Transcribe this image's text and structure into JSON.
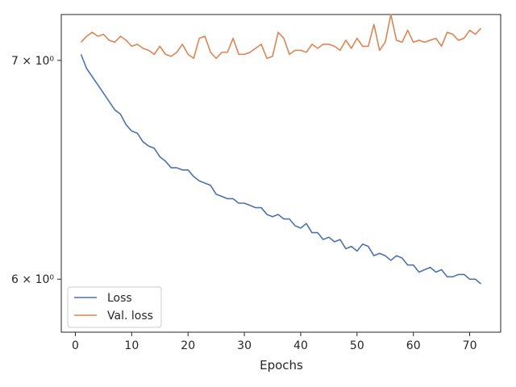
{
  "chart_data": {
    "type": "line",
    "title": "",
    "xlabel": "Epochs",
    "ylabel": "",
    "yscale": "log",
    "xlim": [
      -2.5,
      75.5
    ],
    "ylim": [
      5.78,
      7.23
    ],
    "xticks": [
      0,
      10,
      20,
      30,
      40,
      50,
      60,
      70
    ],
    "xtick_labels": [
      "0",
      "10",
      "20",
      "30",
      "40",
      "50",
      "60",
      "70"
    ],
    "yticks": [
      6,
      7
    ],
    "ytick_labels": [
      "6 × 10⁰",
      "7 × 10⁰"
    ],
    "grid": false,
    "legend_position": "lower-left",
    "x": [
      1,
      2,
      3,
      4,
      5,
      6,
      7,
      8,
      9,
      10,
      11,
      12,
      13,
      14,
      15,
      16,
      17,
      18,
      19,
      20,
      21,
      22,
      23,
      24,
      25,
      26,
      27,
      28,
      29,
      30,
      31,
      32,
      33,
      34,
      35,
      36,
      37,
      38,
      39,
      40,
      41,
      42,
      43,
      44,
      45,
      46,
      47,
      48,
      49,
      50,
      51,
      52,
      53,
      54,
      55,
      56,
      57,
      58,
      59,
      60,
      61,
      62,
      63,
      64,
      65,
      66,
      67,
      68,
      69,
      70,
      71,
      72
    ],
    "series": [
      {
        "name": "Loss",
        "color": "#4c72b0",
        "values": [
          7.03,
          6.96,
          6.92,
          6.88,
          6.84,
          6.8,
          6.76,
          6.74,
          6.69,
          6.66,
          6.65,
          6.61,
          6.59,
          6.58,
          6.54,
          6.52,
          6.49,
          6.49,
          6.48,
          6.48,
          6.45,
          6.43,
          6.42,
          6.41,
          6.37,
          6.36,
          6.35,
          6.35,
          6.33,
          6.33,
          6.32,
          6.31,
          6.31,
          6.28,
          6.27,
          6.28,
          6.26,
          6.26,
          6.23,
          6.22,
          6.24,
          6.2,
          6.2,
          6.17,
          6.18,
          6.16,
          6.17,
          6.13,
          6.14,
          6.12,
          6.15,
          6.14,
          6.1,
          6.11,
          6.1,
          6.08,
          6.1,
          6.09,
          6.06,
          6.06,
          6.03,
          6.04,
          6.05,
          6.03,
          6.04,
          6.01,
          6.01,
          6.02,
          6.02,
          6.0,
          6.0,
          5.98
        ]
      },
      {
        "name": "Val. loss",
        "color": "#dd8452",
        "values": [
          7.09,
          7.12,
          7.14,
          7.12,
          7.13,
          7.1,
          7.09,
          7.12,
          7.1,
          7.07,
          7.08,
          7.06,
          7.05,
          7.03,
          7.07,
          7.03,
          7.02,
          7.04,
          7.08,
          7.03,
          7.01,
          7.11,
          7.12,
          7.04,
          7.01,
          7.04,
          7.04,
          7.11,
          7.03,
          7.03,
          7.04,
          7.06,
          7.08,
          7.01,
          7.02,
          7.14,
          7.11,
          7.03,
          7.05,
          7.05,
          7.04,
          7.08,
          7.06,
          7.08,
          7.08,
          7.07,
          7.05,
          7.1,
          7.06,
          7.11,
          7.07,
          7.07,
          7.18,
          7.05,
          7.09,
          7.23,
          7.1,
          7.09,
          7.15,
          7.09,
          7.1,
          7.09,
          7.1,
          7.11,
          7.07,
          7.14,
          7.13,
          7.1,
          7.11,
          7.15,
          7.13,
          7.16
        ]
      }
    ]
  }
}
